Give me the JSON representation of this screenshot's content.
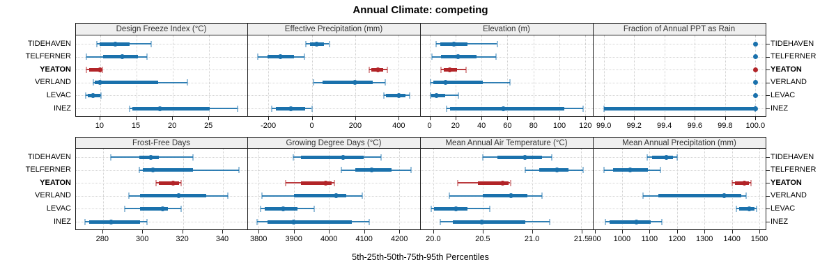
{
  "title": "Annual Climate: competing",
  "footer_label": "5th-25th-50th-75th-95th Percentiles",
  "sites": [
    {
      "name": "TIDEHAVEN",
      "highlight": false
    },
    {
      "name": "TELFERNER",
      "highlight": false
    },
    {
      "name": "YEATON",
      "highlight": true
    },
    {
      "name": "VERLAND",
      "highlight": false
    },
    {
      "name": "LEVAC",
      "highlight": false
    },
    {
      "name": "INEZ",
      "highlight": false
    }
  ],
  "colors": {
    "series": "#1A71AC",
    "series_light": "rgba(26,113,172,0.45)",
    "highlight": "#B22428",
    "highlight_light": "rgba(178,36,40,0.45)",
    "grid": "#CFCFCF",
    "strip_bg": "#EFEFEF",
    "panel_border": "#1f1f1f"
  },
  "chart_data": {
    "type": "dot-interval-trellis",
    "percentiles": [
      5,
      25,
      50,
      75,
      95
    ],
    "rows": 2,
    "cols": 4,
    "legend_position": "none",
    "grid": "dotted",
    "panels": [
      {
        "title": "Design Freeze Index (°C)",
        "xlim": [
          6.6,
          30.4
        ],
        "tick_values": [
          10,
          15,
          20,
          25
        ],
        "tick_labels": [
          "10",
          "15",
          "20",
          "25"
        ],
        "series": [
          {
            "site": "TIDEHAVEN",
            "q": [
              9.5,
              9.9,
              12.1,
              14.0,
              17.0
            ]
          },
          {
            "site": "TELFERNER",
            "q": [
              8.1,
              10.4,
              13.0,
              15.2,
              16.4
            ]
          },
          {
            "site": "YEATON",
            "q": [
              8.1,
              8.5,
              10.0,
              10.1,
              10.3
            ]
          },
          {
            "site": "VERLAND",
            "q": [
              9.0,
              9.2,
              10.0,
              18.0,
              22.0
            ]
          },
          {
            "site": "LEVAC",
            "q": [
              8.0,
              8.3,
              9.0,
              10.0,
              10.1
            ]
          },
          {
            "site": "INEZ",
            "q": [
              14.0,
              14.4,
              18.2,
              25.1,
              28.9
            ]
          }
        ]
      },
      {
        "title": "Effective Precipitation (mm)",
        "xlim": [
          -295,
          500
        ],
        "tick_values": [
          -200,
          0,
          200,
          400
        ],
        "tick_labels": [
          "-200",
          "0",
          "200",
          "400"
        ],
        "series": [
          {
            "site": "TIDEHAVEN",
            "q": [
              -27,
              -8,
              21,
              55,
              80
            ]
          },
          {
            "site": "TELFERNER",
            "q": [
              -248,
              -205,
              -146,
              -82,
              -33
            ]
          },
          {
            "site": "YEATON",
            "q": [
              264,
              275,
              303,
              330,
              349
            ]
          },
          {
            "site": "VERLAND",
            "q": [
              9,
              50,
              200,
              280,
              337
            ]
          },
          {
            "site": "LEVAC",
            "q": [
              330,
              340,
              400,
              430,
              450
            ]
          },
          {
            "site": "INEZ",
            "q": [
              -184,
              -165,
              -98,
              -30,
              0
            ]
          }
        ]
      },
      {
        "title": "Elevation (m)",
        "xlim": [
          -7,
          126
        ],
        "tick_values": [
          0,
          20,
          40,
          60,
          80,
          100,
          120
        ],
        "tick_labels": [
          "0",
          "20",
          "40",
          "60",
          "80",
          "100",
          "120"
        ],
        "series": [
          {
            "site": "TIDEHAVEN",
            "q": [
              5,
              8,
              18.5,
              29,
              52
            ]
          },
          {
            "site": "TELFERNER",
            "q": [
              2,
              9,
              22,
              36,
              51
            ]
          },
          {
            "site": "YEATON",
            "q": [
              9,
              11,
              15.5,
              21,
              28
            ]
          },
          {
            "site": "VERLAND",
            "q": [
              1,
              3,
              12.5,
              41,
              62
            ]
          },
          {
            "site": "LEVAC",
            "q": [
              0.5,
              1.5,
              5.5,
              12,
              22
            ]
          },
          {
            "site": "INEZ",
            "q": [
              13,
              16,
              57,
              104,
              118
            ]
          }
        ]
      },
      {
        "title": "Fraction of Annual PPT as Rain",
        "xlim": [
          98.93,
          100.07
        ],
        "tick_values": [
          99.0,
          99.2,
          99.4,
          99.6,
          99.8,
          100.0
        ],
        "tick_labels": [
          "99.0",
          "99.2",
          "99.4",
          "99.6",
          "99.8",
          "100.0"
        ],
        "series": [
          {
            "site": "TIDEHAVEN",
            "q": [
              100,
              100,
              100,
              100,
              100
            ]
          },
          {
            "site": "TELFERNER",
            "q": [
              100,
              100,
              100,
              100,
              100
            ]
          },
          {
            "site": "YEATON",
            "q": [
              100,
              100,
              100,
              100,
              100
            ]
          },
          {
            "site": "VERLAND",
            "q": [
              100,
              100,
              100,
              100,
              100
            ]
          },
          {
            "site": "LEVAC",
            "q": [
              100,
              100,
              100,
              100,
              100
            ]
          },
          {
            "site": "INEZ",
            "q": [
              99,
              99,
              100,
              100,
              100
            ]
          }
        ]
      },
      {
        "title": "Frost-Free Days",
        "xlim": [
          266.3,
          352.7
        ],
        "tick_values": [
          280,
          300,
          320,
          340
        ],
        "tick_labels": [
          "280",
          "300",
          "320",
          "340"
        ],
        "series": [
          {
            "site": "TIDEHAVEN",
            "q": [
              284,
              298,
              304,
              308,
              325
            ]
          },
          {
            "site": "TELFERNER",
            "q": [
              298,
              300,
              305,
              325,
              348
            ]
          },
          {
            "site": "YEATON",
            "q": [
              306.5,
              308,
              315,
              318,
              319
            ]
          },
          {
            "site": "VERLAND",
            "q": [
              293,
              298.5,
              318,
              331.5,
              342.5
            ]
          },
          {
            "site": "LEVAC",
            "q": [
              291,
              298.5,
              310,
              312.5,
              319
            ]
          },
          {
            "site": "INEZ",
            "q": [
              271,
              273,
              284,
              298.5,
              302
            ]
          }
        ]
      },
      {
        "title": "Growing Degree Days (°C)",
        "xlim": [
          3769,
          4260
        ],
        "tick_values": [
          3800,
          3900,
          4000,
          4100,
          4200
        ],
        "tick_labels": [
          "3800",
          "3900",
          "4000",
          "4100",
          "4200"
        ],
        "series": [
          {
            "site": "TIDEHAVEN",
            "q": [
              3898,
              3920,
              4040,
              4098,
              4149
            ]
          },
          {
            "site": "TELFERNER",
            "q": [
              4035,
              4075,
              4122,
              4177,
              4233
            ]
          },
          {
            "site": "YEATON",
            "q": [
              3877,
              3920,
              3990,
              4008,
              4015
            ]
          },
          {
            "site": "VERLAND",
            "q": [
              3810,
              3900,
              4020,
              4050,
              4095
            ]
          },
          {
            "site": "LEVAC",
            "q": [
              3806,
              3818,
              3870,
              3910,
              3958
            ]
          },
          {
            "site": "INEZ",
            "q": [
              3796,
              3825,
              3900,
              4065,
              4114
            ]
          }
        ]
      },
      {
        "title": "Mean Annual Air Temperature (°C)",
        "xlim": [
          19.87,
          21.62
        ],
        "tick_values": [
          20.0,
          20.5,
          21.0,
          21.5
        ],
        "tick_labels": [
          "20.0",
          "20.5",
          "21.0",
          "21.5"
        ],
        "series": [
          {
            "site": "TIDEHAVEN",
            "q": [
              20.5,
              20.65,
              20.93,
              21.1,
              21.2
            ]
          },
          {
            "site": "TELFERNER",
            "q": [
              20.93,
              21.07,
              21.25,
              21.37,
              21.52
            ]
          },
          {
            "site": "YEATON",
            "q": [
              20.25,
              20.45,
              20.7,
              20.76,
              20.78
            ]
          },
          {
            "site": "VERLAND",
            "q": [
              20.16,
              20.5,
              20.79,
              20.95,
              21.1
            ]
          },
          {
            "site": "LEVAC",
            "q": [
              19.98,
              20.01,
              20.23,
              20.35,
              20.57
            ]
          },
          {
            "site": "INEZ",
            "q": [
              20.07,
              20.2,
              20.49,
              20.93,
              21.18
            ]
          }
        ]
      },
      {
        "title": "Mean Annual Precipitation (mm)",
        "xlim": [
          895,
          1524
        ],
        "tick_values": [
          900,
          1000,
          1100,
          1200,
          1300,
          1400,
          1500
        ],
        "tick_labels": [
          "900",
          "1000",
          "1100",
          "1200",
          "1300",
          "1400",
          "1500"
        ],
        "series": [
          {
            "site": "TIDEHAVEN",
            "q": [
              1092,
              1108,
              1160,
              1184,
              1200
            ]
          },
          {
            "site": "TELFERNER",
            "q": [
              935,
              968,
              1030,
              1095,
              1139
            ]
          },
          {
            "site": "YEATON",
            "q": [
              1400,
              1411,
              1445,
              1462,
              1470
            ]
          },
          {
            "site": "VERLAND",
            "q": [
              1076,
              1131,
              1372,
              1433,
              1451
            ]
          },
          {
            "site": "LEVAC",
            "q": [
              1415,
              1425,
              1462,
              1483,
              1490
            ]
          },
          {
            "site": "INEZ",
            "q": [
              938,
              955,
              1052,
              1103,
              1145
            ]
          }
        ]
      }
    ]
  }
}
